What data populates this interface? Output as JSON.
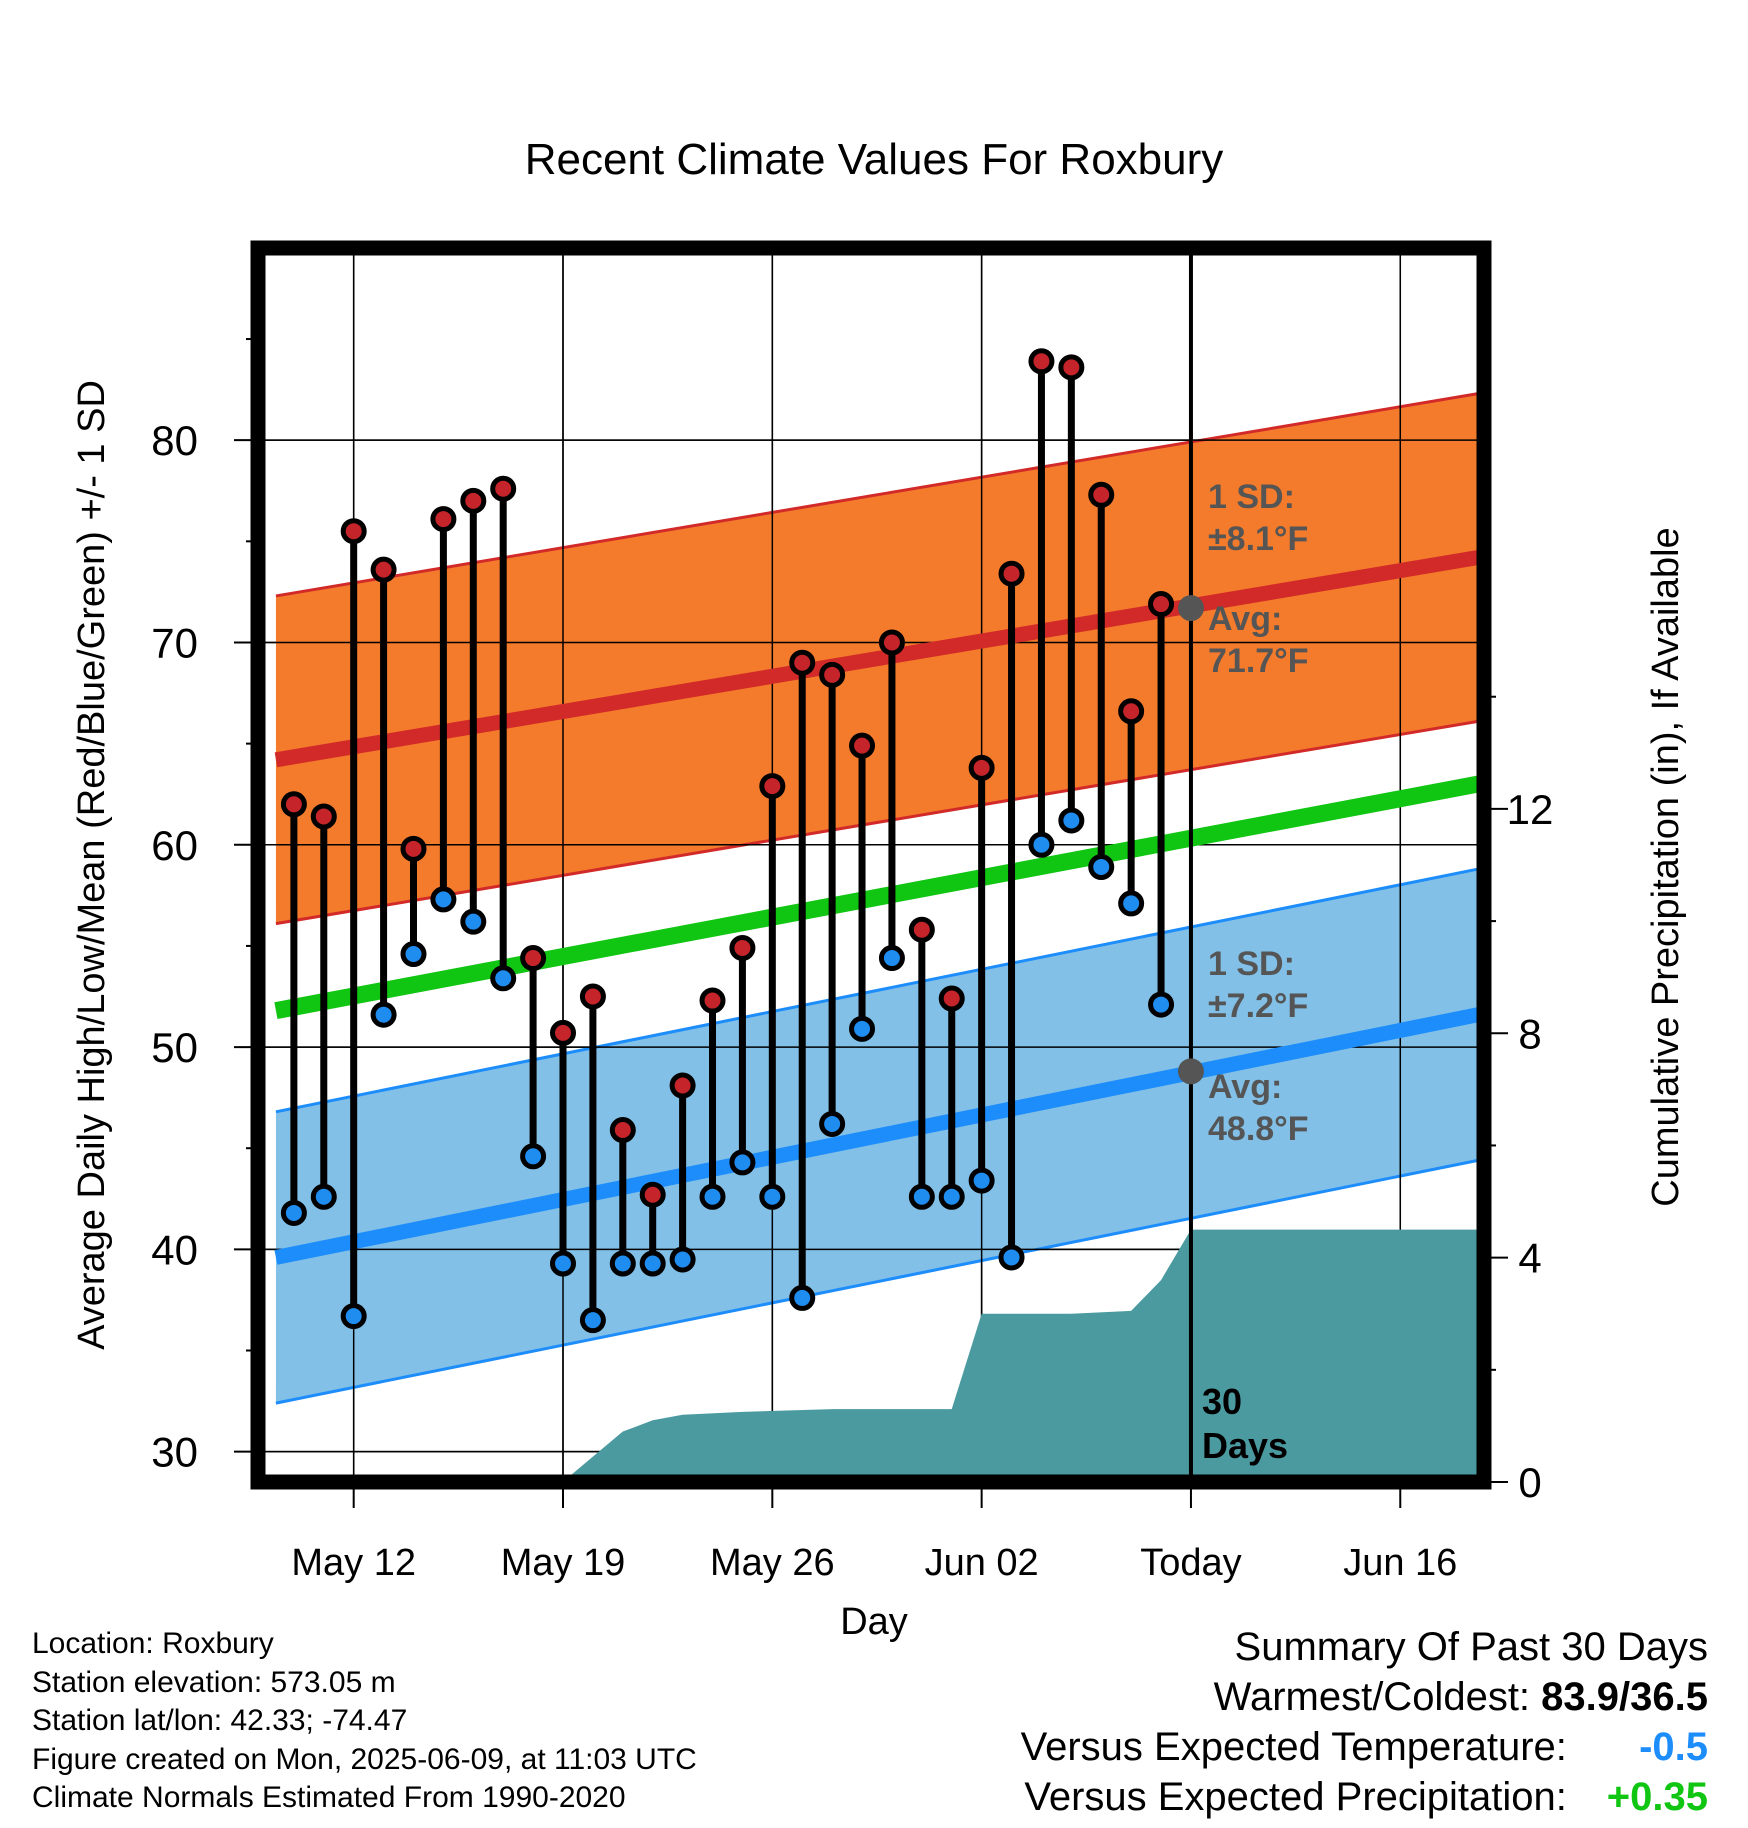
{
  "chart_data": {
    "type": "line",
    "title": "Recent Climate Values For Roxbury",
    "xlabel": "Day",
    "ylabel": "Average Daily High/Low/Mean (Red/Blue/Green) +/- 1 SD",
    "y2label": "Cumulative Precipitation (in), If Available",
    "x_ticks": [
      "May 12",
      "May 19",
      "May 26",
      "Jun 02",
      "Today",
      "Jun 16"
    ],
    "x_tick_day_index": [
      0,
      7,
      14,
      21,
      28,
      35
    ],
    "xlim_day_index": [
      -3.2,
      37.8
    ],
    "ylim": [
      28.5,
      89.5
    ],
    "y_ticks": [
      30,
      40,
      50,
      60,
      70,
      80
    ],
    "y2lim": [
      0,
      22
    ],
    "y2_ticks": [
      0,
      4,
      8,
      12
    ],
    "days": [
      -2,
      -1,
      0,
      1,
      2,
      3,
      4,
      5,
      6,
      7,
      8,
      9,
      10,
      11,
      12,
      13,
      14,
      15,
      16,
      17,
      18,
      19,
      20,
      21,
      22,
      23,
      24,
      25,
      26,
      27
    ],
    "observed_high": [
      62.0,
      61.4,
      75.5,
      73.6,
      59.8,
      76.1,
      77.0,
      77.6,
      54.4,
      50.7,
      52.5,
      45.9,
      42.7,
      48.1,
      52.3,
      54.9,
      62.9,
      69.0,
      68.4,
      64.9,
      70.0,
      55.8,
      52.4,
      63.8,
      73.4,
      83.9,
      83.6,
      77.3,
      66.6,
      71.9
    ],
    "observed_low": [
      41.8,
      42.6,
      36.7,
      51.6,
      54.6,
      57.3,
      56.2,
      53.4,
      44.6,
      39.3,
      36.5,
      39.3,
      39.3,
      39.5,
      42.6,
      44.3,
      42.6,
      37.6,
      46.2,
      50.9,
      54.4,
      42.6,
      42.6,
      43.4,
      39.6,
      60.0,
      61.2,
      58.9,
      57.1,
      52.1
    ],
    "normal_high": {
      "name": "Avg: 71.7°F",
      "sd_label": "1 SD:\n±8.1°F",
      "x": [
        -2.6,
        37.6
      ],
      "values": [
        64.2,
        74.2
      ],
      "sd": 8.1
    },
    "normal_low": {
      "name": "Avg: 48.8°F",
      "sd_label": "1 SD:\n±7.2°F",
      "x": [
        -2.6,
        37.6
      ],
      "values": [
        39.6,
        51.6
      ],
      "sd": 7.2
    },
    "normal_mean": {
      "x": [
        -2.6,
        37.6
      ],
      "values": [
        51.8,
        63.0
      ]
    },
    "today_markers": {
      "day": 28,
      "high": 71.7,
      "low": 48.8
    },
    "precip_cumulative": {
      "x": [
        -2.6,
        5.9,
        7.1,
        9.0,
        10.0,
        11.0,
        13.0,
        16.0,
        20.0,
        21.0,
        22.0,
        24.0,
        26.0,
        27.0,
        28.0,
        37.6
      ],
      "values": [
        0,
        0,
        0.05,
        0.9,
        1.1,
        1.2,
        1.25,
        1.3,
        1.3,
        3.0,
        3.0,
        3.0,
        3.05,
        3.6,
        4.5,
        4.5
      ]
    },
    "today_label": "30\nDays",
    "colors": {
      "high_band": "#f47b2c",
      "high_line": "#d22a28",
      "low_band": "#82c0e7",
      "low_line": "#1c8dfb",
      "mean_line": "#11c513",
      "precip": "#4a9aa0",
      "marker_high": "#c4242a",
      "marker_low": "#1f8cf0",
      "annotation": "#555555"
    }
  },
  "footer": {
    "location": "Location: Roxbury",
    "elevation": "Station elevation: 573.05 m",
    "latlon": "Station lat/lon: 42.33; -74.47",
    "created": "Figure created on Mon, 2025-06-09, at 11:03 UTC",
    "normals": "Climate Normals Estimated From 1990-2020"
  },
  "summary": {
    "title": "Summary Of Past 30 Days",
    "warm_cold_label": "Warmest/Coldest:",
    "warm_cold_value": "83.9/36.5",
    "temp_label": "Versus Expected Temperature:",
    "temp_value": "-0.5",
    "temp_color": "#1c8dfb",
    "precip_label": "Versus Expected Precipitation:",
    "precip_value": "+0.35",
    "precip_color": "#11c513"
  }
}
